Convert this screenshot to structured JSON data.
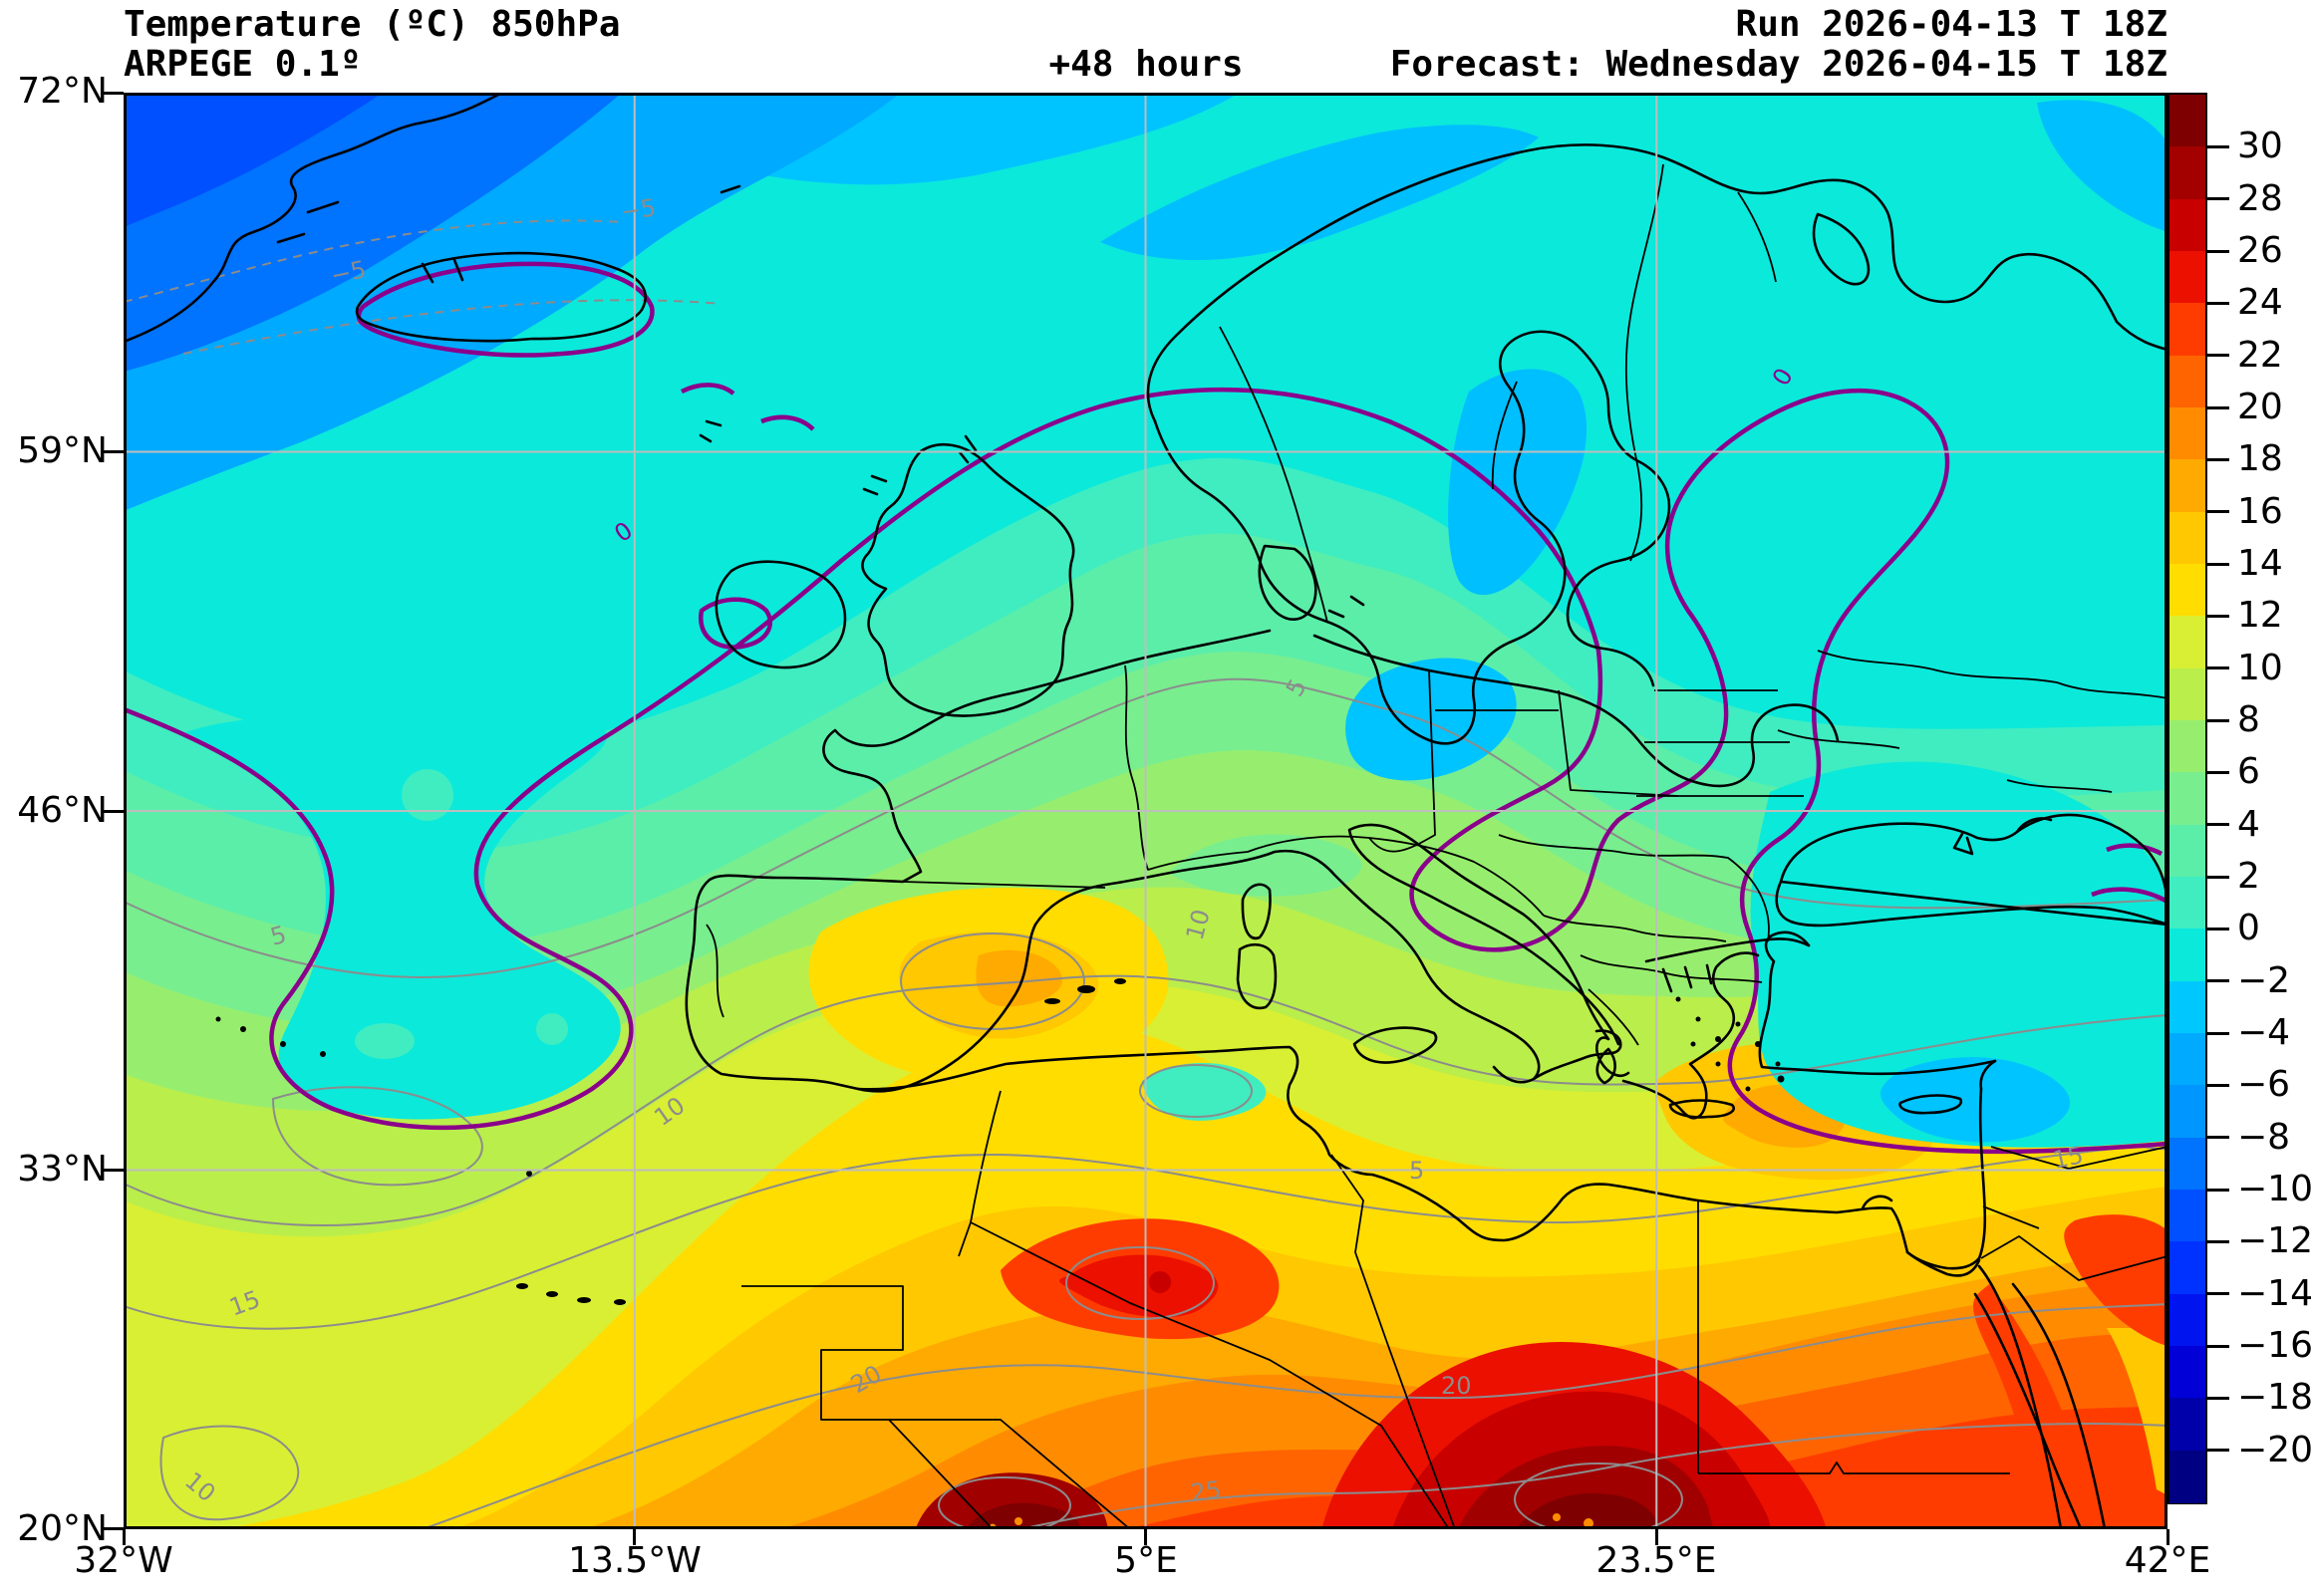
{
  "header": {
    "title_line1": "Temperature (ºC) 850hPa",
    "title_line2": "ARPEGE 0.1º",
    "lead_time": "+48 hours",
    "run_label": "Run 2026-04-13 T 18Z",
    "forecast_label": "Forecast: Wednesday 2026-04-15 T 18Z"
  },
  "axes": {
    "lat_ticks": [
      "72°N",
      "59°N",
      "46°N",
      "33°N",
      "20°N"
    ],
    "lon_ticks": [
      "32°W",
      "13.5°W",
      "5°E",
      "23.5°E",
      "42°E"
    ]
  },
  "colorbar": {
    "unit": "°C",
    "min": -22,
    "max": 32,
    "step": 2,
    "colors_top_to_bottom": [
      "#7F0000",
      "#A30000",
      "#C80000",
      "#EB1000",
      "#FF3C00",
      "#FF6400",
      "#FF8C00",
      "#FFAA00",
      "#FFC800",
      "#FFDD00",
      "#D9EF33",
      "#BAEE4B",
      "#97EE6E",
      "#78EE8F",
      "#5BEEA9",
      "#3FEDC1",
      "#0BE9DB",
      "#00C8FF",
      "#00AAFF",
      "#0096FF",
      "#0073FF",
      "#0050FF",
      "#0032FF",
      "#0014F0",
      "#0000D7",
      "#0000AA",
      "#000082"
    ],
    "tick_values": [
      30,
      28,
      26,
      24,
      22,
      20,
      18,
      16,
      14,
      12,
      10,
      8,
      6,
      4,
      2,
      0,
      -2,
      -4,
      -6,
      -8,
      -10,
      -12,
      -14,
      -16,
      -18,
      -20
    ],
    "tick_labels": [
      "30",
      "28",
      "26",
      "24",
      "22",
      "20",
      "18",
      "16",
      "14",
      "12",
      "10",
      "8",
      "6",
      "4",
      "2",
      "0",
      "−2",
      "−4",
      "−6",
      "−8",
      "−10",
      "−12",
      "−14",
      "−16",
      "−18",
      "−20"
    ]
  },
  "map": {
    "grid_color": "#bdbdbd",
    "frame_color": "#000000",
    "coastline_color": "#000000",
    "isotherm_color": "#8c8c8c",
    "zero_isotherm_color": "#8B008B",
    "isotherm_labels": [
      "−5",
      "0",
      "5",
      "10",
      "15",
      "20",
      "25"
    ]
  },
  "chart_data": {
    "type": "filled_contour_map",
    "variable": "Temperature",
    "unit": "°C",
    "level": "850hPa",
    "model": "ARPEGE 0.1º",
    "run": "2026-04-13 18Z",
    "valid_time": "Wednesday 2026-04-15 18Z",
    "lead_hours": 48,
    "lon_range_deg": [
      -32,
      42
    ],
    "lat_range_deg": [
      20,
      72
    ],
    "fill_interval_c": 2,
    "fill_range_c": [
      -22,
      32
    ],
    "gray_isoline_interval_c": 5,
    "highlighted_isoline_c": 0,
    "regional_values_c": {
      "greenland_corner": -10,
      "iceland": 0,
      "norwegian_sea": -3,
      "scandinavia_interior": -2,
      "british_isles": 3,
      "mid_atlantic_cold_pocket": -1,
      "central_europe": 5,
      "eastern_europe_ukraine_pocket": -1,
      "iberia_interior": 14,
      "western_mediterranean": 9,
      "italy": 8,
      "aegean_sea_sw_turkey": 15,
      "black_sea": 2,
      "north_africa_coast": 17,
      "morocco_atlas": 24,
      "central_sahara": 29,
      "southern_libya_chad_max": 31,
      "egypt": 22,
      "red_sea_coast": 25,
      "sw_atlantic_corner": 11
    }
  }
}
